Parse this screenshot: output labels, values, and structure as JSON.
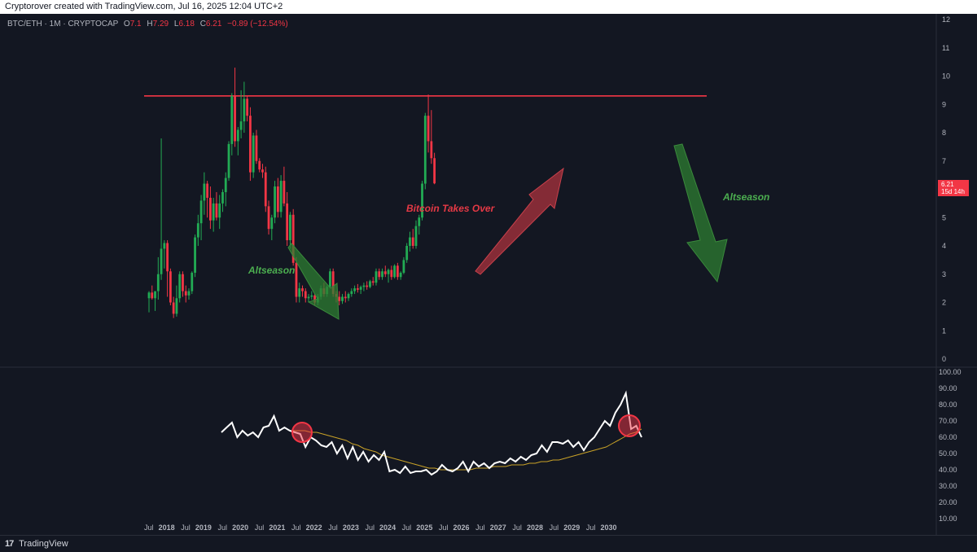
{
  "header": {
    "text": "Cryptorover created with TradingView.com, Jul 16, 2025 12:04 UTC+2"
  },
  "legend": {
    "symbol": "BTC/ETH · 1M · CRYPTOCAP",
    "o_label": "O",
    "o_value": "7.1",
    "h_label": "H",
    "h_value": "7.29",
    "l_label": "L",
    "l_value": "6.18",
    "c_label": "C",
    "c_value": "6.21",
    "change": "−0.89 (−12.54%)"
  },
  "price_tag": {
    "price": "6.21",
    "countdown": "15d 14h"
  },
  "annotations": {
    "altseason_left": "Altseason",
    "bitcoin_takes_over": "Bitcoin Takes Over",
    "altseason_right": "Altseason"
  },
  "footer": {
    "logo": "17",
    "brand": "TradingView"
  },
  "colors": {
    "background": "#131722",
    "up": "#22ab54",
    "down": "#f23645",
    "resistance": "#f23645",
    "rsi_line": "#ffffff",
    "rsi_ma": "#c9a227",
    "arrow_green": "#3a8a3c",
    "arrow_red": "#b5353f"
  },
  "chart_data": [
    {
      "type": "candlestick",
      "title": "BTC/ETH · 1M · CRYPTOCAP",
      "ylim": [
        0,
        12
      ],
      "y_ticks": [
        "0",
        "1",
        "2",
        "3",
        "4",
        "5",
        "6",
        "7",
        "8",
        "9",
        "10",
        "11",
        "12"
      ],
      "x_ticks": [
        "Jul",
        "2018",
        "Jul",
        "2019",
        "Jul",
        "2020",
        "Jul",
        "2021",
        "Jul",
        "2022",
        "Jul",
        "2023",
        "Jul",
        "2024",
        "Jul",
        "2025",
        "Jul",
        "2026",
        "Jul",
        "2027",
        "Jul",
        "2028",
        "Jul",
        "2029",
        "Jul",
        "2030"
      ],
      "resistance_level": 9.3,
      "ohlc": [
        [
          2.15,
          2.4,
          1.65,
          2.35
        ],
        [
          2.35,
          2.6,
          2.1,
          2.15
        ],
        [
          2.15,
          2.3,
          1.7,
          2.4
        ],
        [
          2.4,
          3.6,
          2.1,
          3.0
        ],
        [
          3.0,
          7.8,
          2.8,
          3.9
        ],
        [
          3.9,
          4.2,
          3.2,
          4.1
        ],
        [
          4.1,
          4.2,
          2.2,
          3.1
        ],
        [
          3.1,
          3.2,
          1.9,
          2.0
        ],
        [
          2.0,
          2.2,
          1.45,
          1.6
        ],
        [
          1.6,
          2.6,
          1.5,
          2.15
        ],
        [
          2.15,
          3.1,
          2.0,
          3.0
        ],
        [
          3.0,
          3.1,
          2.2,
          2.4
        ],
        [
          2.4,
          2.6,
          2.0,
          2.25
        ],
        [
          2.25,
          2.5,
          2.1,
          2.4
        ],
        [
          2.4,
          3.1,
          2.3,
          3.05
        ],
        [
          3.05,
          4.4,
          2.9,
          4.3
        ],
        [
          4.3,
          5.1,
          4.0,
          4.8
        ],
        [
          4.8,
          5.8,
          4.2,
          5.6
        ],
        [
          5.6,
          6.6,
          5.1,
          6.2
        ],
        [
          6.2,
          6.3,
          5.0,
          5.7
        ],
        [
          5.7,
          6.1,
          4.6,
          4.9
        ],
        [
          4.9,
          5.7,
          4.5,
          5.5
        ],
        [
          5.5,
          5.9,
          4.9,
          5.0
        ],
        [
          5.0,
          5.8,
          4.6,
          5.5
        ],
        [
          5.5,
          6.0,
          5.2,
          5.9
        ],
        [
          5.9,
          6.6,
          5.4,
          6.4
        ],
        [
          6.4,
          7.7,
          6.3,
          7.6
        ],
        [
          7.6,
          9.4,
          7.2,
          9.3
        ],
        [
          9.3,
          10.3,
          7.5,
          7.7
        ],
        [
          7.7,
          8.2,
          7.2,
          8.1
        ],
        [
          8.1,
          9.5,
          7.8,
          8.4
        ],
        [
          8.4,
          9.8,
          8.0,
          9.2
        ],
        [
          9.2,
          9.3,
          8.4,
          8.6
        ],
        [
          8.6,
          8.9,
          6.3,
          6.6
        ],
        [
          6.6,
          8.0,
          6.4,
          7.9
        ],
        [
          7.9,
          8.1,
          6.9,
          7.0
        ],
        [
          7.0,
          7.1,
          6.6,
          6.7
        ],
        [
          6.7,
          6.9,
          6.4,
          6.6
        ],
        [
          6.6,
          6.8,
          5.2,
          5.4
        ],
        [
          5.4,
          5.6,
          4.4,
          4.6
        ],
        [
          4.6,
          5.1,
          4.2,
          5.0
        ],
        [
          5.0,
          6.3,
          4.8,
          6.1
        ],
        [
          6.1,
          6.4,
          5.0,
          5.2
        ],
        [
          5.2,
          6.5,
          5.0,
          6.3
        ],
        [
          6.3,
          6.8,
          5.4,
          5.5
        ],
        [
          5.5,
          5.9,
          4.0,
          4.2
        ],
        [
          4.2,
          5.2,
          3.9,
          5.1
        ],
        [
          5.1,
          5.3,
          3.3,
          3.4
        ],
        [
          3.4,
          3.6,
          2.0,
          2.2
        ],
        [
          2.2,
          2.7,
          2.0,
          2.5
        ],
        [
          2.5,
          2.6,
          2.2,
          2.4
        ],
        [
          2.4,
          2.5,
          2.0,
          2.15
        ],
        [
          2.15,
          2.3,
          2.0,
          2.2
        ],
        [
          2.2,
          2.4,
          2.1,
          2.25
        ],
        [
          2.25,
          2.3,
          1.9,
          2.0
        ],
        [
          2.0,
          2.3,
          1.9,
          2.2
        ],
        [
          2.2,
          2.6,
          2.1,
          2.5
        ],
        [
          2.5,
          2.7,
          2.2,
          2.3
        ],
        [
          2.3,
          2.6,
          2.2,
          2.55
        ],
        [
          2.55,
          3.2,
          2.5,
          3.1
        ],
        [
          3.1,
          3.2,
          2.2,
          2.3
        ],
        [
          2.3,
          2.4,
          2.0,
          2.2
        ],
        [
          2.2,
          2.4,
          1.9,
          2.05
        ],
        [
          2.05,
          2.3,
          1.95,
          2.2
        ],
        [
          2.2,
          2.4,
          2.0,
          2.15
        ],
        [
          2.15,
          2.35,
          2.05,
          2.3
        ],
        [
          2.3,
          2.5,
          2.2,
          2.4
        ],
        [
          2.4,
          2.6,
          2.3,
          2.5
        ],
        [
          2.5,
          2.65,
          2.35,
          2.45
        ],
        [
          2.45,
          2.6,
          2.3,
          2.55
        ],
        [
          2.55,
          2.7,
          2.4,
          2.6
        ],
        [
          2.6,
          2.75,
          2.45,
          2.55
        ],
        [
          2.55,
          2.8,
          2.5,
          2.75
        ],
        [
          2.75,
          2.9,
          2.6,
          2.7
        ],
        [
          2.7,
          3.2,
          2.6,
          3.1
        ],
        [
          3.1,
          3.2,
          2.8,
          2.9
        ],
        [
          2.9,
          3.2,
          2.8,
          3.1
        ],
        [
          3.1,
          3.3,
          2.9,
          3.0
        ],
        [
          3.0,
          3.2,
          2.7,
          3.15
        ],
        [
          3.15,
          3.3,
          2.8,
          2.9
        ],
        [
          2.9,
          3.35,
          2.85,
          3.3
        ],
        [
          3.3,
          3.4,
          2.8,
          2.9
        ],
        [
          2.9,
          3.1,
          2.8,
          3.05
        ],
        [
          3.05,
          3.6,
          3.0,
          3.5
        ],
        [
          3.5,
          4.1,
          3.4,
          4.0
        ],
        [
          4.0,
          4.5,
          3.8,
          4.3
        ],
        [
          4.3,
          4.6,
          3.9,
          4.0
        ],
        [
          4.0,
          4.9,
          3.9,
          4.7
        ],
        [
          4.7,
          5.1,
          4.4,
          5.0
        ],
        [
          5.0,
          6.3,
          4.9,
          6.2
        ],
        [
          6.2,
          8.7,
          6.0,
          8.6
        ],
        [
          8.6,
          9.35,
          7.3,
          7.7
        ],
        [
          7.7,
          8.8,
          6.9,
          7.1
        ],
        [
          7.1,
          7.29,
          6.18,
          6.21
        ]
      ]
    },
    {
      "type": "line",
      "title": "",
      "ylim": [
        10,
        100
      ],
      "y_ticks": [
        "100.00",
        "90.00",
        "80.00",
        "70.00",
        "60.00",
        "50.00",
        "40.00",
        "30.00",
        "20.00",
        "10.00"
      ],
      "series": [
        {
          "name": "",
          "values": [
            63,
            66,
            69,
            60,
            64,
            61,
            63,
            60,
            66,
            67,
            73,
            64,
            66,
            64,
            63,
            62,
            54,
            60,
            58,
            55,
            54,
            57,
            50,
            55,
            47,
            54,
            46,
            51,
            45,
            49,
            46,
            51,
            39,
            40,
            38,
            42,
            38,
            39,
            39,
            40,
            37,
            39,
            43,
            40,
            39,
            41,
            45,
            39,
            45,
            42,
            44,
            41,
            44,
            45,
            44,
            47,
            45,
            48,
            46,
            49,
            50,
            55,
            51,
            57,
            57,
            56,
            58,
            54,
            57,
            52,
            57,
            60,
            65,
            70,
            67,
            75,
            80,
            87,
            65,
            67,
            60
          ]
        },
        {
          "name": "",
          "values": [
            64,
            64,
            64,
            63,
            63,
            62,
            61,
            60,
            59,
            58,
            56,
            55,
            53,
            52,
            51,
            49,
            48,
            47,
            46,
            45,
            44,
            43,
            42,
            41,
            41,
            40,
            40,
            40,
            40,
            40,
            40,
            41,
            41,
            41,
            42,
            42,
            42,
            43,
            43,
            43,
            44,
            44,
            45,
            45,
            46,
            46,
            47,
            48,
            49,
            50,
            51,
            52,
            53,
            54,
            56,
            58,
            60,
            62,
            63,
            65
          ]
        }
      ]
    }
  ]
}
